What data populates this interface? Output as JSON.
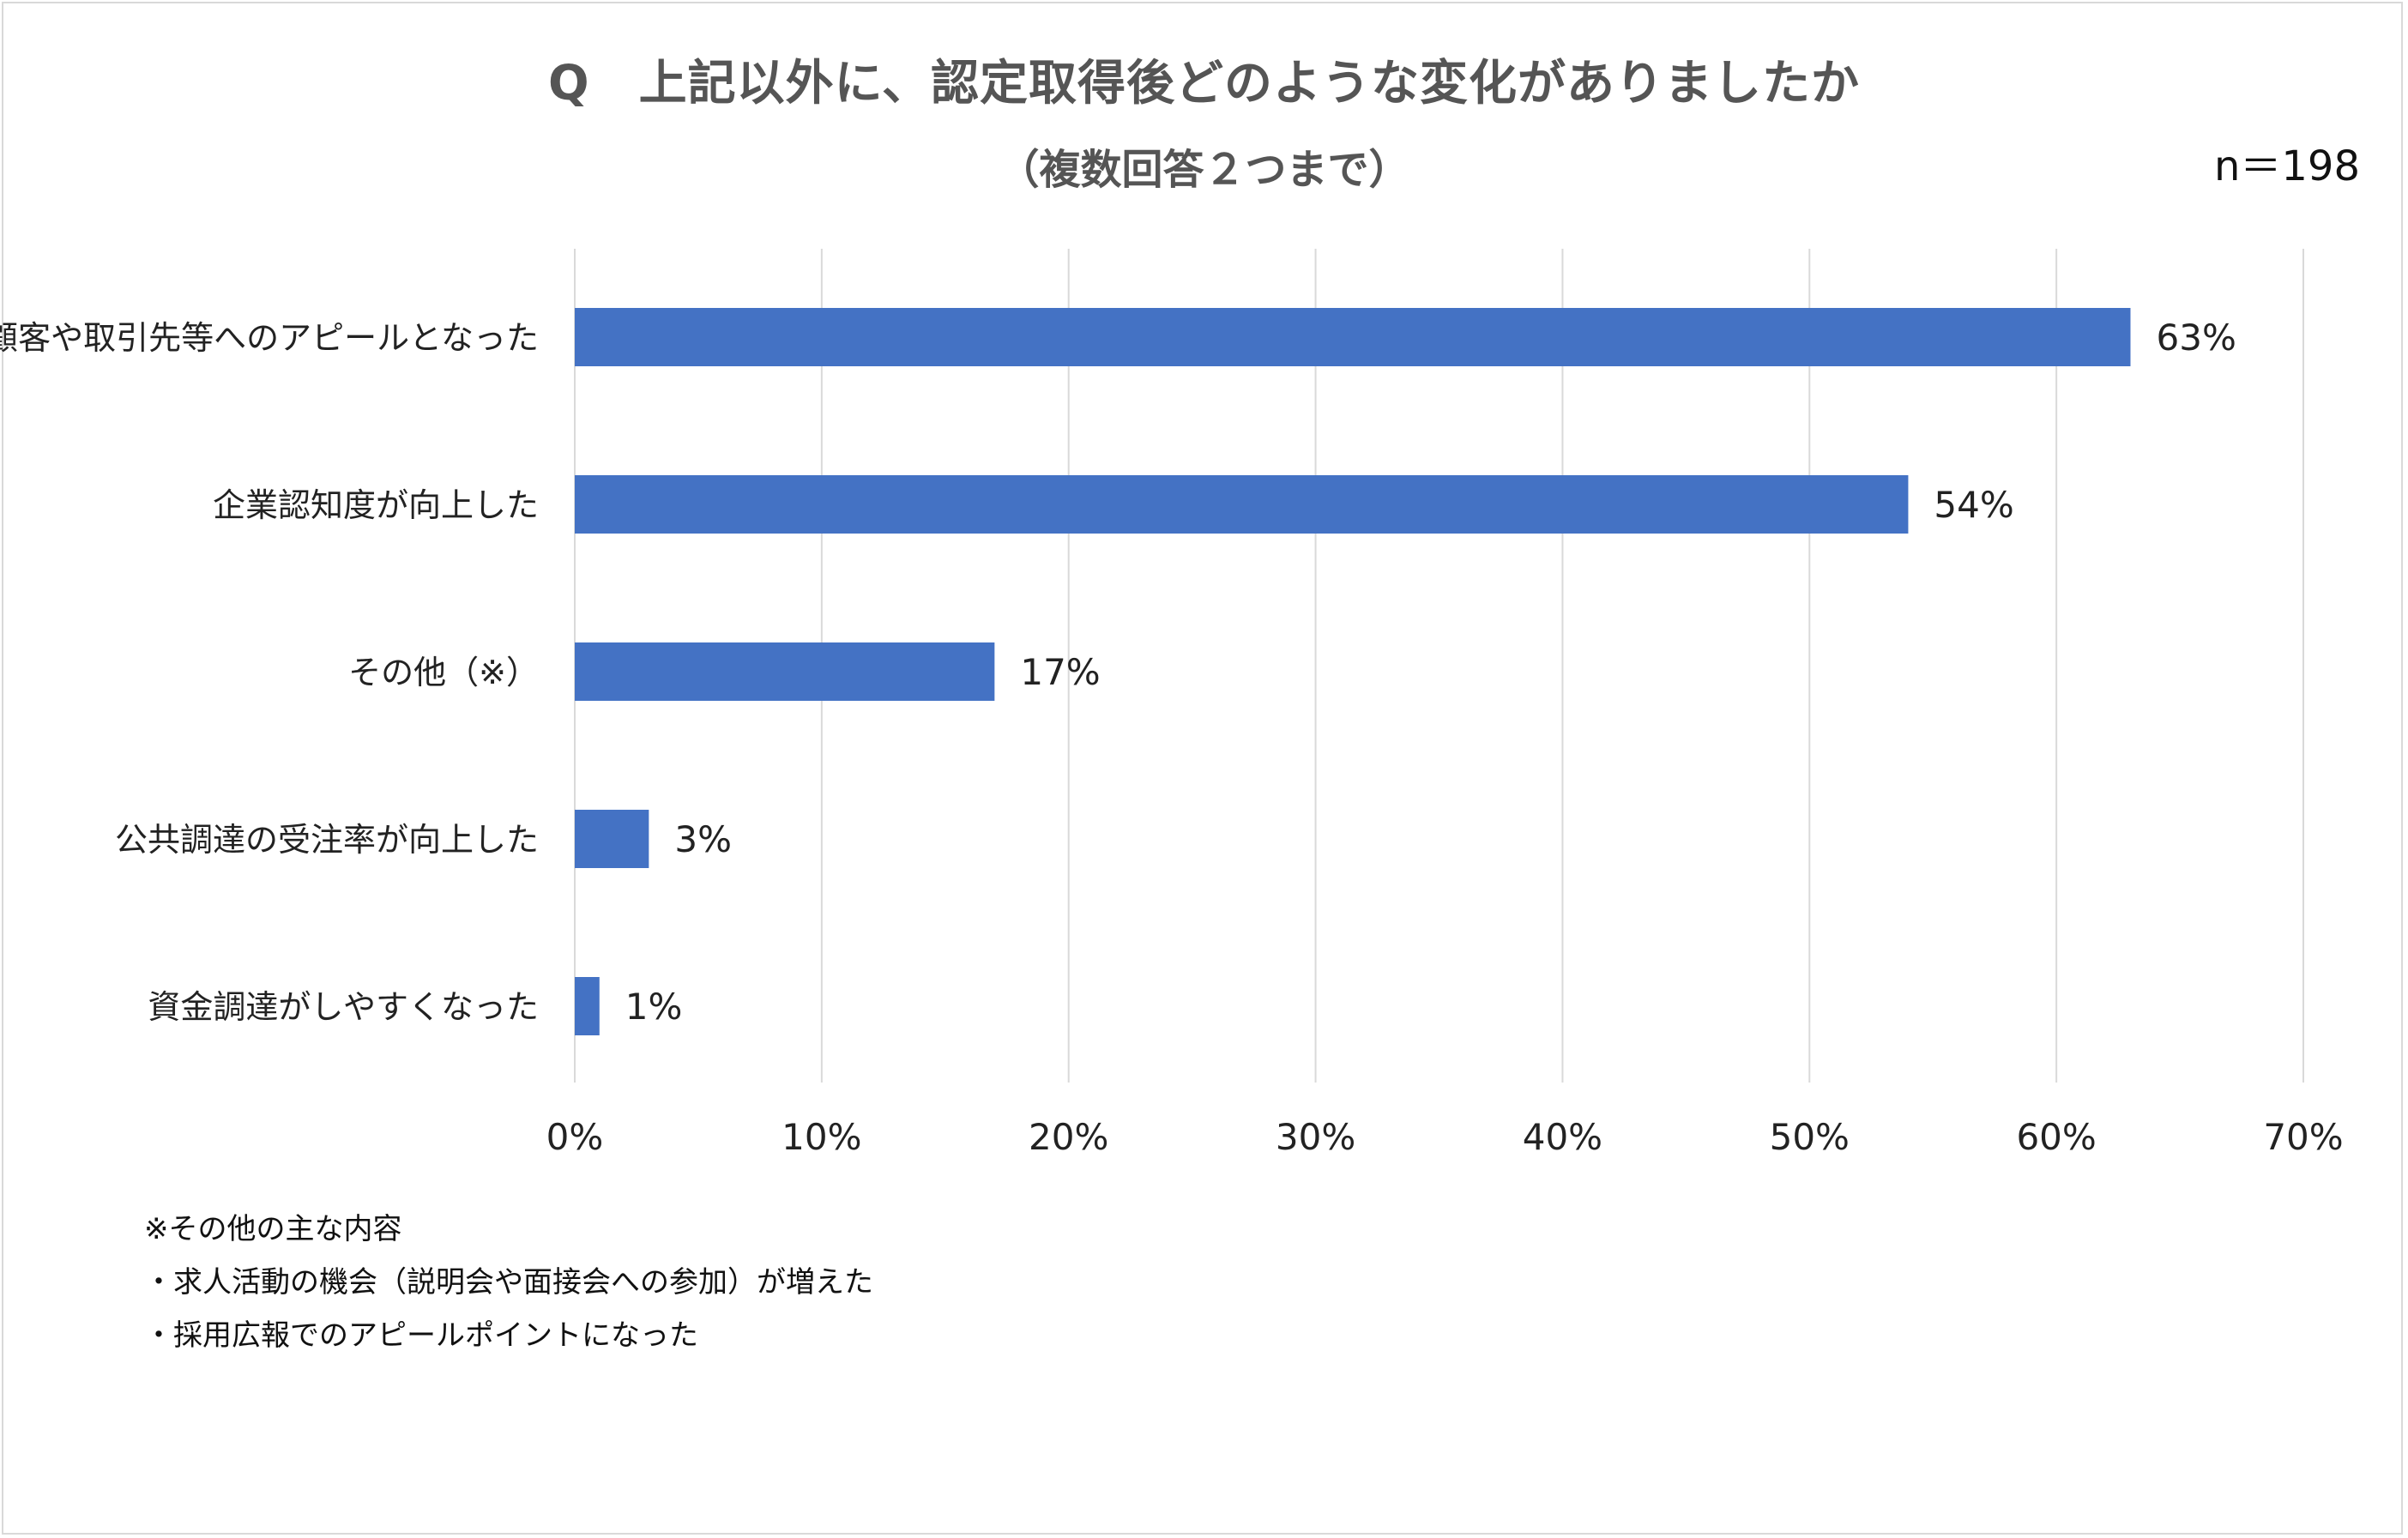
{
  "title": "Q　上記以外に、認定取得後どのような変化がありましたか",
  "subtitle": "（複数回答２つまで）",
  "sample_size": "n＝198",
  "colors": {
    "bar": "#4472c4",
    "grid": "#d9d9d9",
    "text": "#222222",
    "title": "#555555"
  },
  "chart_data": {
    "type": "bar",
    "orientation": "horizontal",
    "categories": [
      "顧客や取引先等へのアピールとなった",
      "企業認知度が向上した",
      "その他（※）",
      "公共調達の受注率が向上した",
      "資金調達がしやすくなった"
    ],
    "values": [
      63,
      54,
      17,
      3,
      1
    ],
    "value_labels": [
      "63%",
      "54%",
      "17%",
      "3%",
      "1%"
    ],
    "xlim": [
      0,
      70
    ],
    "xticks": [
      "0%",
      "10%",
      "20%",
      "30%",
      "40%",
      "50%",
      "60%",
      "70%"
    ],
    "grid": true
  },
  "notes": {
    "heading": "※その他の主な内容",
    "items": [
      "・求人活動の機会（説明会や面接会への参加）が増えた",
      "・採用広報でのアピールポイントになった"
    ]
  }
}
